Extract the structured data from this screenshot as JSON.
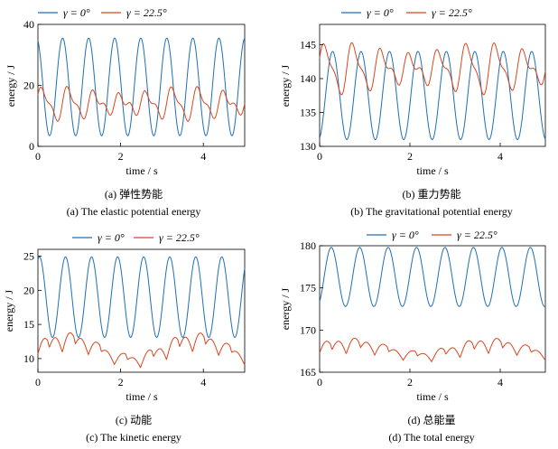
{
  "chart_data": [
    {
      "id": "a",
      "type": "line",
      "title": "",
      "xlabel": "time / s",
      "ylabel": "energy / J",
      "xlim": [
        0,
        5
      ],
      "ylim": [
        0,
        40
      ],
      "xticks": [
        "0",
        "2",
        "4"
      ],
      "xtick_values": [
        0,
        2,
        4
      ],
      "yticks": [
        "0",
        "20",
        "40"
      ],
      "ytick_values": [
        0,
        20,
        40
      ],
      "legend": "top",
      "caption_cn": "(a) 弹性势能",
      "caption_en": "(a) The elastic potential energy",
      "series": [
        {
          "name": "γ = 0°",
          "color": "#1f6fb5",
          "model": {
            "kind": "sine",
            "base": 19.5,
            "amp": 16,
            "period": 0.63,
            "phase": 1.9
          }
        },
        {
          "name": "γ = 22.5°",
          "color": "#d9461e",
          "model": {
            "kind": "beat",
            "base": 14,
            "amp": 3.6,
            "period": 0.63,
            "phase": 0.4,
            "mod_amp": 4.5,
            "mod_period": 3.1,
            "mod_phase": 0.6
          }
        }
      ]
    },
    {
      "id": "b",
      "type": "line",
      "title": "",
      "xlabel": "time / s",
      "ylabel": "energy / J",
      "xlim": [
        0,
        5
      ],
      "ylim": [
        130,
        148
      ],
      "xticks": [
        "0",
        "2",
        "4"
      ],
      "xtick_values": [
        0,
        2,
        4
      ],
      "yticks": [
        "130",
        "135",
        "140",
        "145"
      ],
      "ytick_values": [
        130,
        135,
        140,
        145
      ],
      "legend": "top",
      "caption_cn": "(b) 重力势能",
      "caption_en": "(b) The gravitational potential energy",
      "series": [
        {
          "name": "γ = 0°",
          "color": "#1f6fb5",
          "model": {
            "kind": "sine",
            "base": 137.5,
            "amp": 6.5,
            "period": 0.63,
            "phase": -1.3
          }
        },
        {
          "name": "γ = 22.5°",
          "color": "#d9461e",
          "model": {
            "kind": "beat",
            "base": 141.5,
            "amp": 2.5,
            "period": 0.63,
            "phase": 0.3,
            "mod_amp": 2.7,
            "mod_period": 3.1,
            "mod_phase": 0.6
          }
        }
      ]
    },
    {
      "id": "c",
      "type": "line",
      "title": "",
      "xlabel": "time / s",
      "ylabel": "energy / J",
      "xlim": [
        0,
        5
      ],
      "ylim": [
        8,
        26
      ],
      "xticks": [
        "0",
        "2",
        "4"
      ],
      "xtick_values": [
        0,
        2,
        4
      ],
      "yticks": [
        "10",
        "15",
        "20",
        "25"
      ],
      "ytick_values": [
        10,
        15,
        20,
        25
      ],
      "legend": "top",
      "caption_cn": "(c) 动能",
      "caption_en": "(c) The kinetic energy",
      "series": [
        {
          "name": "γ = 0°",
          "color": "#1f6fb5",
          "model": {
            "kind": "sine",
            "base": 19,
            "amp": 5.9,
            "period": 0.63,
            "phase": 1.2
          }
        },
        {
          "name": "γ = 22.5°",
          "color": "#d9461e",
          "model": {
            "kind": "double",
            "base": 11.3,
            "amp": 1.6,
            "amp2": 1.5,
            "period": 0.63,
            "phase": 0.4,
            "mod_amp": 1.2,
            "mod_period": 3.1,
            "mod_phase": 0.6
          }
        }
      ]
    },
    {
      "id": "d",
      "type": "line",
      "title": "",
      "xlabel": "time / s",
      "ylabel": "energy / J",
      "xlim": [
        0,
        5
      ],
      "ylim": [
        165,
        180
      ],
      "xticks": [
        "0",
        "2",
        "4"
      ],
      "xtick_values": [
        0,
        2,
        4
      ],
      "yticks": [
        "165",
        "170",
        "175",
        "180"
      ],
      "ytick_values": [
        165,
        170,
        175,
        180
      ],
      "legend": "top",
      "caption_cn": "(d) 总能量",
      "caption_en": "(d) The total energy",
      "series": [
        {
          "name": "γ = 0°",
          "color": "#1f6fb5",
          "model": {
            "kind": "sine",
            "base": 176.3,
            "amp": 3.5,
            "period": 0.63,
            "phase": -1.0
          }
        },
        {
          "name": "γ = 22.5°",
          "color": "#d9461e",
          "model": {
            "kind": "double",
            "base": 167.6,
            "amp": 1.1,
            "amp2": 0.9,
            "period": 0.63,
            "phase": 0.4,
            "mod_amp": 0.5,
            "mod_period": 3.1,
            "mod_phase": 0.6
          }
        }
      ]
    }
  ]
}
